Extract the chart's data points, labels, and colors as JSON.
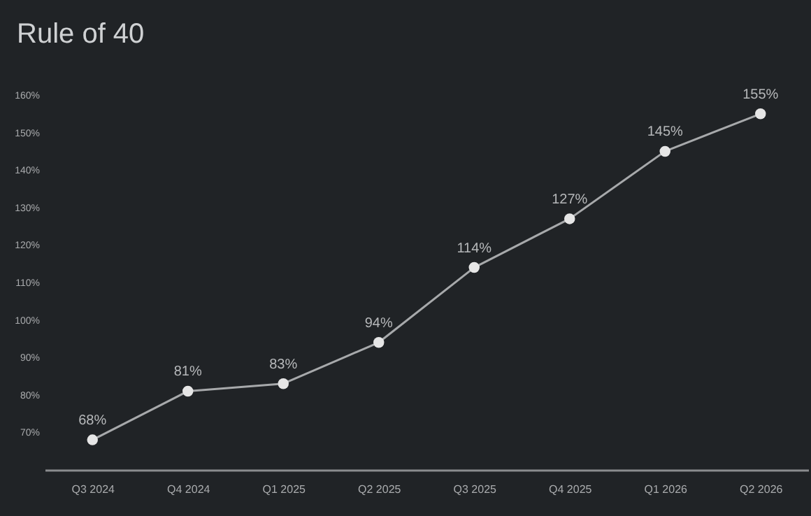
{
  "chart_data": {
    "type": "line",
    "title": "Rule of 40",
    "categories": [
      "Q3 2024",
      "Q4 2024",
      "Q1 2025",
      "Q2 2025",
      "Q3 2025",
      "Q4 2025",
      "Q1 2026",
      "Q2 2026"
    ],
    "series": [
      {
        "color": "#e6e6e6",
        "values": [
          68,
          81,
          83,
          94,
          114,
          127,
          145,
          155
        ],
        "value_labels": [
          "68%",
          "81%",
          "83%",
          "94%",
          "114%",
          "127%",
          "145%",
          "155%"
        ]
      }
    ],
    "ylim": [
      60,
      160
    ],
    "yticks": [
      {
        "value": 70,
        "label": "70%"
      },
      {
        "value": 80,
        "label": "80%"
      },
      {
        "value": 90,
        "label": "90%"
      },
      {
        "value": 100,
        "label": "100%"
      },
      {
        "value": 110,
        "label": "110%"
      },
      {
        "value": 120,
        "label": "120%"
      },
      {
        "value": 130,
        "label": "130%"
      },
      {
        "value": 140,
        "label": "140%"
      },
      {
        "value": 150,
        "label": "150%"
      },
      {
        "value": 160,
        "label": "160%"
      }
    ],
    "marker": "circle",
    "line_style": "solid"
  }
}
